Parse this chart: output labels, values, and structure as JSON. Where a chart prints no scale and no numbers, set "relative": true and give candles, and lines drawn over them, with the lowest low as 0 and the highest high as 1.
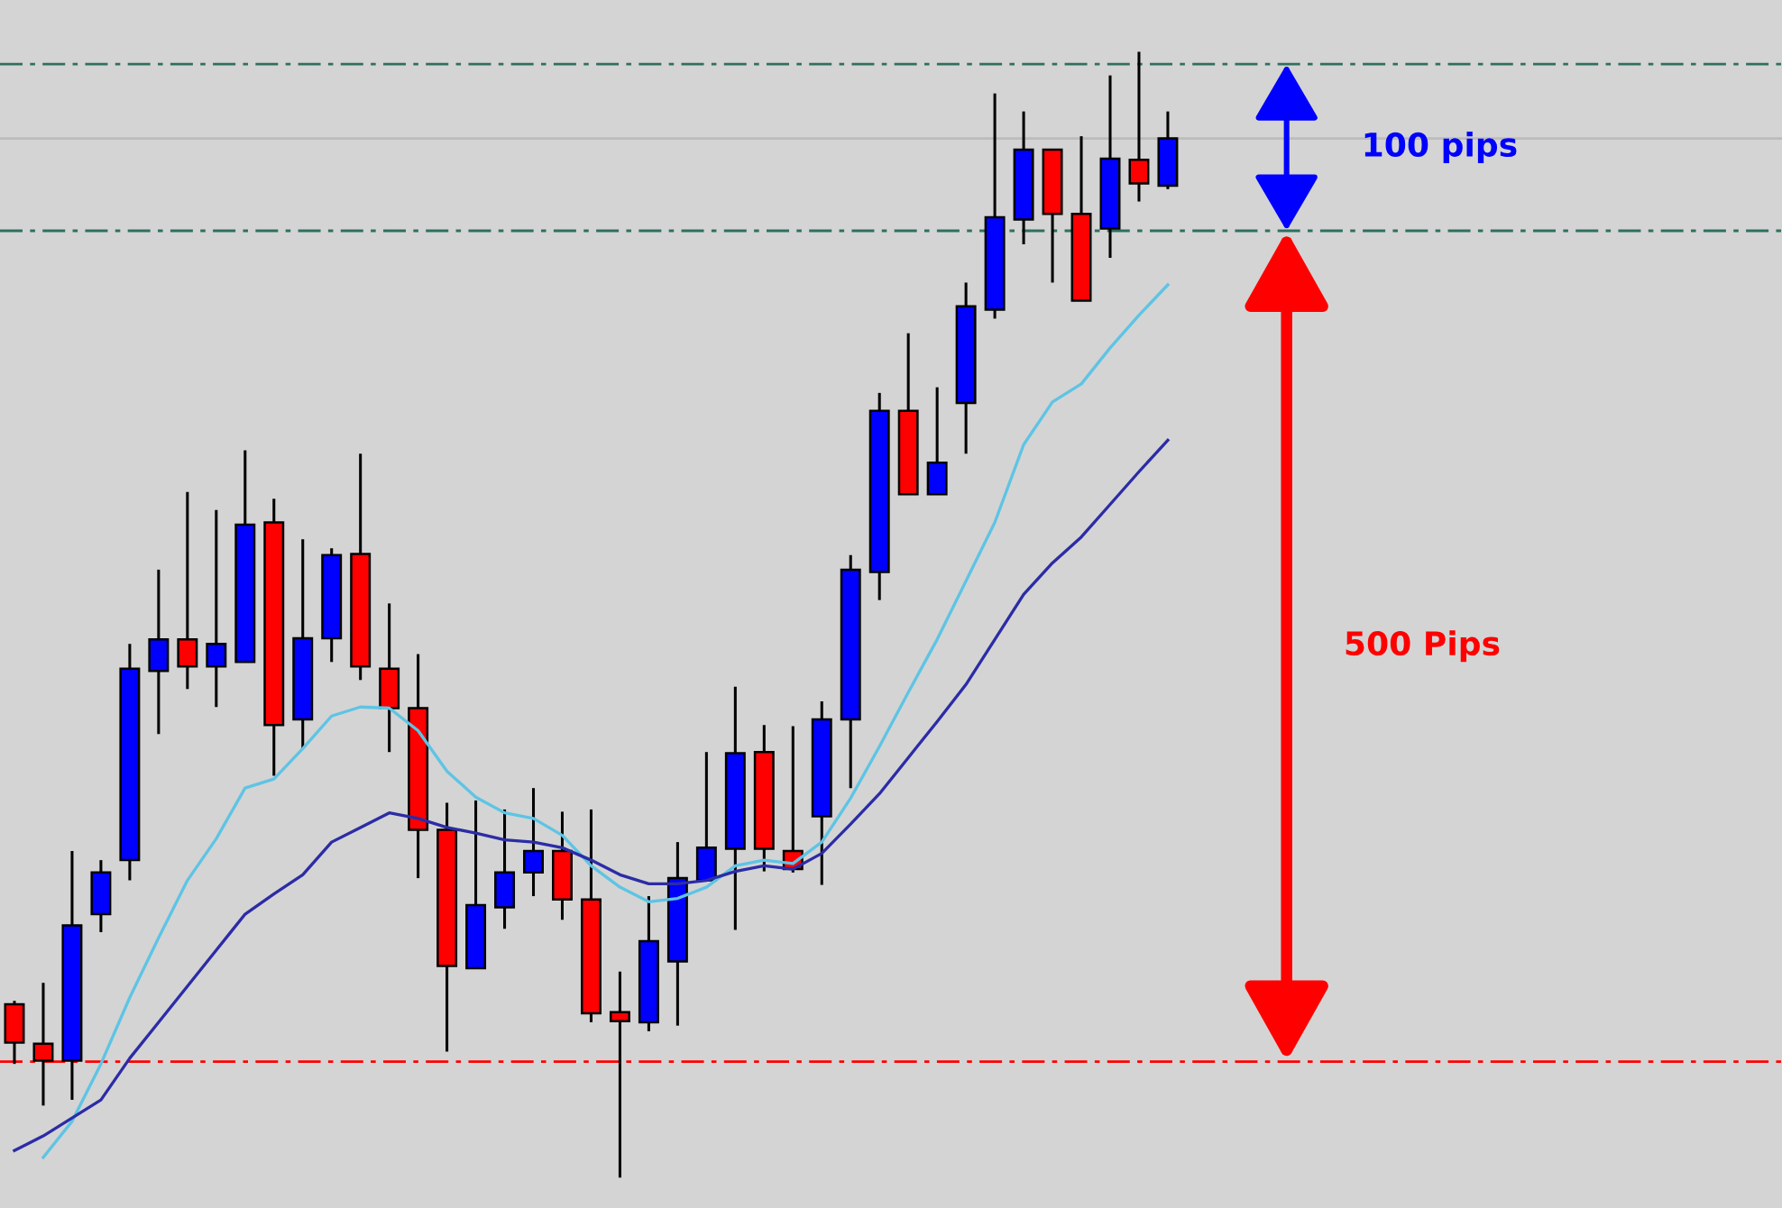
{
  "chart_data": {
    "type": "candlestick",
    "relative": true,
    "categories": [
      null,
      null,
      null,
      null,
      null,
      null,
      null,
      null,
      null,
      null,
      null,
      null,
      null,
      null,
      null,
      null,
      null,
      null,
      null,
      null,
      null,
      null,
      null,
      null,
      null,
      null,
      null,
      null,
      null,
      null,
      null,
      null,
      null,
      null,
      null,
      null,
      null,
      null,
      null,
      null,
      null
    ],
    "ohlc": [
      [
        0.154,
        0.157,
        0.101,
        0.12
      ],
      [
        0.119,
        0.173,
        0.064,
        0.104
      ],
      [
        0.104,
        0.29,
        0.069,
        0.224
      ],
      [
        0.234,
        0.282,
        0.218,
        0.271
      ],
      [
        0.282,
        0.474,
        0.264,
        0.452
      ],
      [
        0.45,
        0.54,
        0.394,
        0.478
      ],
      [
        0.478,
        0.609,
        0.434,
        0.454
      ],
      [
        0.454,
        0.593,
        0.418,
        0.474
      ],
      [
        0.458,
        0.646,
        0.458,
        0.58
      ],
      [
        0.582,
        0.603,
        0.357,
        0.402
      ],
      [
        0.407,
        0.567,
        0.381,
        0.479
      ],
      [
        0.479,
        0.559,
        0.458,
        0.553
      ],
      [
        0.554,
        0.643,
        0.442,
        0.454
      ],
      [
        0.452,
        0.51,
        0.378,
        0.417
      ],
      [
        0.417,
        0.465,
        0.266,
        0.309
      ],
      [
        0.309,
        0.333,
        0.112,
        0.188
      ],
      [
        0.186,
        0.335,
        0.186,
        0.242
      ],
      [
        0.24,
        0.327,
        0.221,
        0.271
      ],
      [
        0.271,
        0.346,
        0.25,
        0.29
      ],
      [
        0.29,
        0.325,
        0.229,
        0.247
      ],
      [
        0.247,
        0.327,
        0.138,
        0.146
      ],
      [
        0.147,
        0.183,
        0,
        0.139
      ],
      [
        0.138,
        0.25,
        0.13,
        0.21
      ],
      [
        0.192,
        0.298,
        0.135,
        0.266
      ],
      [
        0.264,
        0.378,
        0.264,
        0.293
      ],
      [
        0.292,
        0.436,
        0.22,
        0.377
      ],
      [
        0.378,
        0.402,
        0.272,
        0.292
      ],
      [
        0.29,
        0.401,
        0.271,
        0.274
      ],
      [
        0.321,
        0.423,
        0.26,
        0.407
      ],
      [
        0.407,
        0.553,
        0.346,
        0.54
      ],
      [
        0.538,
        0.697,
        0.513,
        0.681
      ],
      [
        0.681,
        0.75,
        0.607,
        0.607
      ],
      [
        0.607,
        0.702,
        0.607,
        0.635
      ],
      [
        0.688,
        0.795,
        0.643,
        0.774
      ],
      [
        0.771,
        0.963,
        0.763,
        0.853
      ],
      [
        0.851,
        0.947,
        0.829,
        0.913
      ],
      [
        0.913,
        0.913,
        0.795,
        0.856
      ],
      [
        0.856,
        0.925,
        0.779,
        0.779
      ],
      [
        0.843,
        0.979,
        0.817,
        0.905
      ],
      [
        0.904,
        1,
        0.867,
        0.883
      ],
      [
        0.881,
        0.947,
        0.878,
        0.923
      ]
    ],
    "colors": [
      "#ff0000",
      "#ff0000",
      "#0000ff",
      "#0000ff",
      "#0000ff",
      "#0000ff",
      "#ff0000",
      "#0000ff",
      "#0000ff",
      "#ff0000",
      "#0000ff",
      "#0000ff",
      "#ff0000",
      "#ff0000",
      "#ff0000",
      "#ff0000",
      "#0000ff",
      "#0000ff",
      "#0000ff",
      "#ff0000",
      "#ff0000",
      "#ff0000",
      "#0000ff",
      "#0000ff",
      "#0000ff",
      "#0000ff",
      "#ff0000",
      "#ff0000",
      "#0000ff",
      "#0000ff",
      "#0000ff",
      "#ff0000",
      "#0000ff",
      "#0000ff",
      "#0000ff",
      "#0000ff",
      "#ff0000",
      "#ff0000",
      "#0000ff",
      "#ff0000",
      "#0000ff"
    ],
    "series": [
      {
        "type": "line",
        "color": "#5ec4e4",
        "values": [
          null,
          0.018,
          0.05,
          0.101,
          0.16,
          0.213,
          0.264,
          0.301,
          0.346,
          0.354,
          0.381,
          0.41,
          0.418,
          0.417,
          0.397,
          0.361,
          0.338,
          0.324,
          0.319,
          0.304,
          0.277,
          0.258,
          0.245,
          0.248,
          0.258,
          0.277,
          0.282,
          0.279,
          0.298,
          0.337,
          0.383,
          0.431,
          0.478,
          0.53,
          0.582,
          0.651,
          0.689,
          0.705,
          0.737,
          0.766,
          0.793
        ]
      },
      {
        "type": "line",
        "color": "#2c2ca6",
        "values": [
          0.024,
          0.037,
          0.053,
          0.069,
          0.106,
          0.138,
          0.17,
          0.202,
          0.234,
          0.252,
          0.269,
          0.298,
          0.311,
          0.324,
          0.319,
          0.311,
          0.306,
          0.3,
          0.298,
          0.293,
          0.282,
          0.269,
          0.261,
          0.261,
          0.264,
          0.272,
          0.277,
          0.274,
          0.288,
          0.314,
          0.341,
          0.373,
          0.405,
          0.438,
          0.478,
          0.518,
          0.546,
          0.569,
          0.598,
          0.627,
          0.655
        ]
      }
    ],
    "ref_lines": [
      {
        "axis": "y",
        "value": 0.989,
        "color": "#2f6f5f",
        "line_style": "dashed"
      },
      {
        "axis": "y",
        "value": 0.923,
        "color": "#bcbcbc",
        "line_style": "solid"
      },
      {
        "axis": "y",
        "value": 0.841,
        "color": "#2f6f5f",
        "line_style": "dashed"
      },
      {
        "axis": "y",
        "value": 0.103,
        "color": "#ff0000",
        "line_style": "dashed"
      }
    ],
    "annotations": [
      "100 pips",
      "500 Pips"
    ]
  }
}
